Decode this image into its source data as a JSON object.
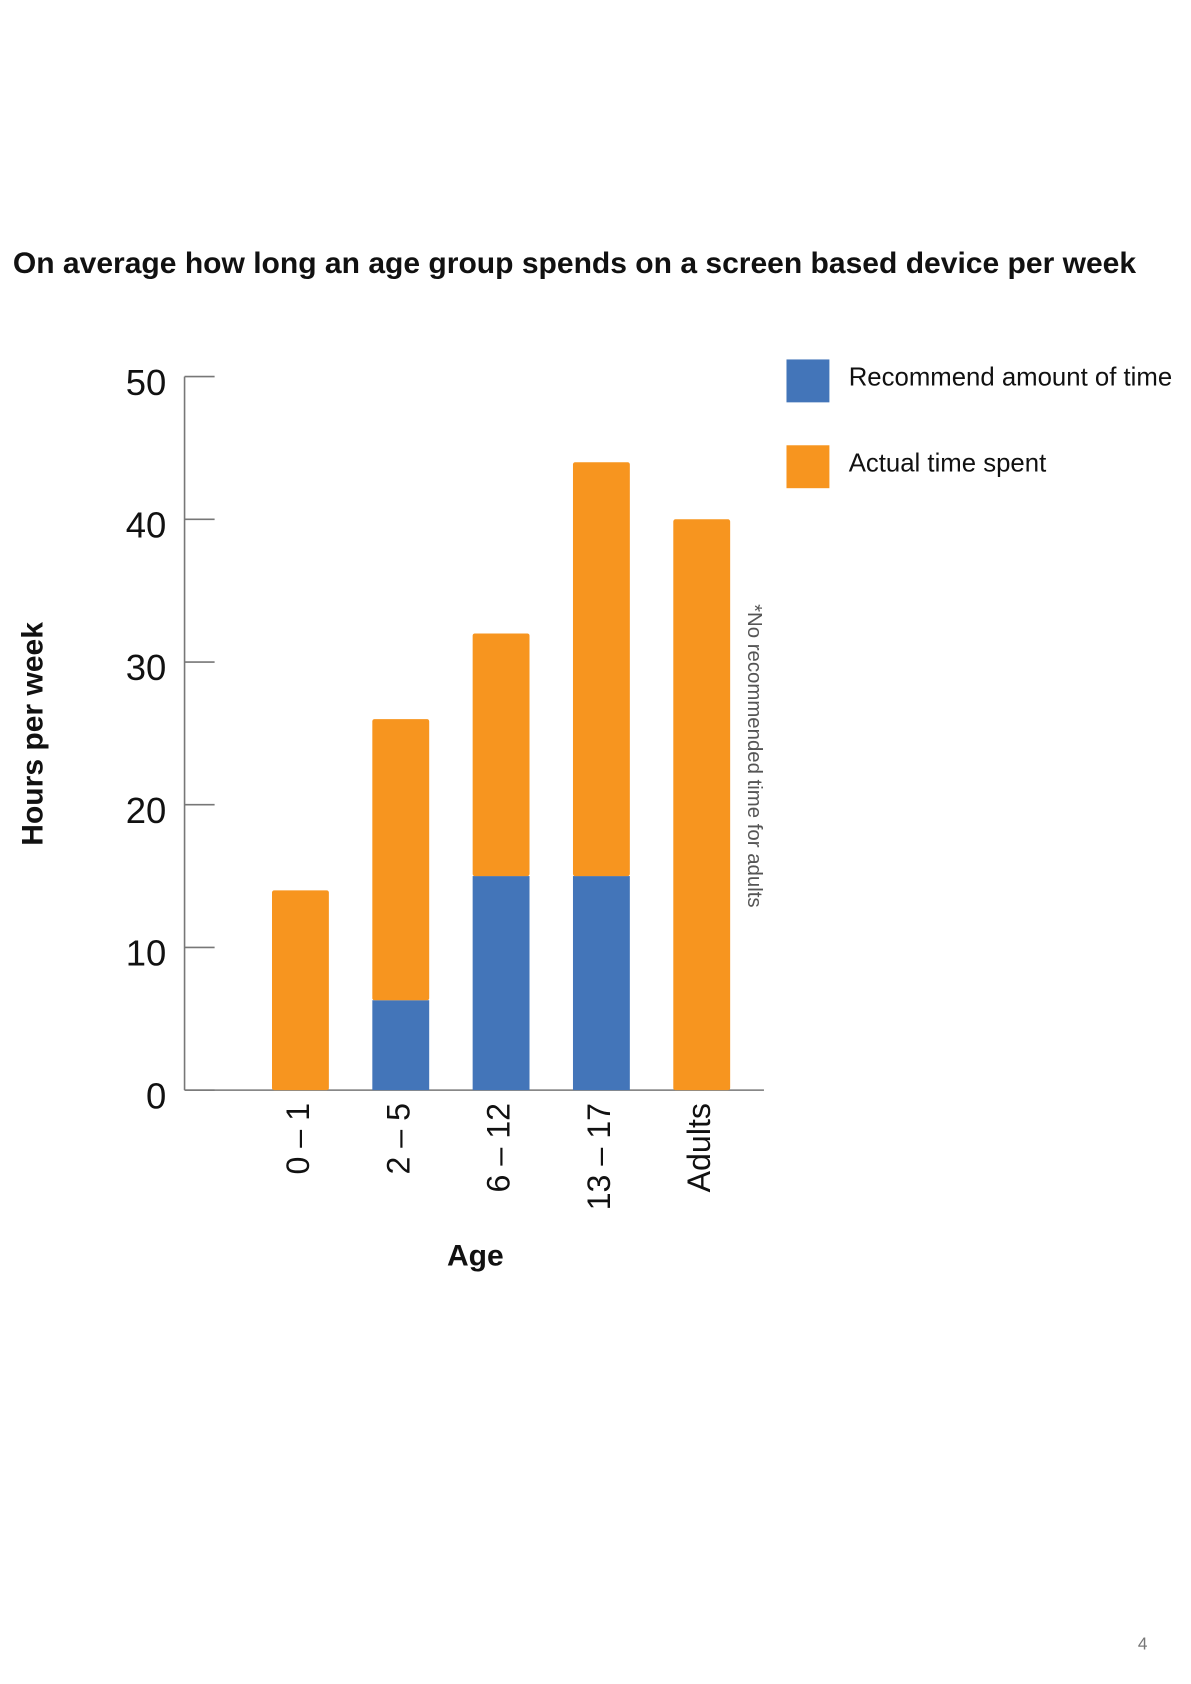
{
  "chart_data": {
    "type": "stacked_bar",
    "title": "On average how long an age group spends on a screen based device per week",
    "y_label": "Hours per week",
    "x_label": "Age",
    "annotation": "*No recommended time for adults",
    "page_number": "4",
    "categories": [
      "0 – 1",
      "2 – 5",
      "6 – 12",
      "13 – 17",
      "Adults"
    ],
    "series": [
      {
        "name": "Recommend amount of time",
        "color": "#4375b9",
        "values": [
          0,
          6.3,
          15,
          15,
          0
        ]
      },
      {
        "name": "Actual time spent",
        "color": "#f7951f",
        "values": [
          14,
          19.7,
          17,
          29,
          40
        ]
      }
    ],
    "ylim": [
      0,
      50
    ],
    "yticks": [
      0,
      10,
      20,
      30,
      40,
      50
    ]
  }
}
